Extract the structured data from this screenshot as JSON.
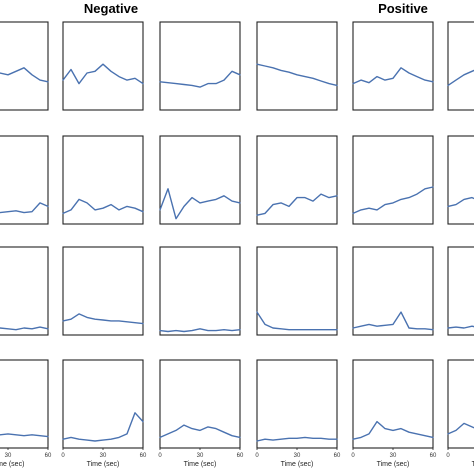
{
  "chart_data": {
    "type": "line",
    "title": "",
    "group_titles": [
      "Negative",
      "Positive"
    ],
    "xlabel": "Time (sec)",
    "x_ticks": [
      "0",
      "30",
      "60"
    ],
    "x_ticks_cut": [
      "30",
      "60"
    ],
    "xlim": [
      0,
      60
    ],
    "ylim": [
      0,
      1
    ],
    "rows": 4,
    "cols": 6,
    "series_color": "#4a72b0",
    "panels": [
      {
        "row": 0,
        "col": 0,
        "y": [
          0.28,
          0.3,
          0.38,
          0.44,
          0.42,
          0.4,
          0.44,
          0.48,
          0.4,
          0.34,
          0.32
        ]
      },
      {
        "row": 0,
        "col": 1,
        "y": [
          0.34,
          0.46,
          0.3,
          0.42,
          0.44,
          0.52,
          0.44,
          0.38,
          0.34,
          0.36,
          0.3
        ]
      },
      {
        "row": 0,
        "col": 2,
        "y": [
          0.32,
          0.31,
          0.3,
          0.29,
          0.28,
          0.26,
          0.3,
          0.3,
          0.34,
          0.44,
          0.4
        ]
      },
      {
        "row": 0,
        "col": 3,
        "y": [
          0.52,
          0.5,
          0.48,
          0.45,
          0.43,
          0.4,
          0.38,
          0.36,
          0.33,
          0.3,
          0.28
        ]
      },
      {
        "row": 0,
        "col": 4,
        "y": [
          0.3,
          0.34,
          0.31,
          0.38,
          0.34,
          0.36,
          0.48,
          0.42,
          0.38,
          0.34,
          0.32
        ]
      },
      {
        "row": 0,
        "col": 5,
        "y": [
          0.28,
          0.34,
          0.4,
          0.44,
          0.48,
          0.44,
          0.4,
          0.38,
          0.36,
          0.34,
          0.32
        ]
      },
      {
        "row": 1,
        "col": 0,
        "y": [
          0.15,
          0.14,
          0.15,
          0.14,
          0.13,
          0.14,
          0.15,
          0.13,
          0.14,
          0.24,
          0.2
        ]
      },
      {
        "row": 1,
        "col": 1,
        "y": [
          0.12,
          0.16,
          0.28,
          0.24,
          0.16,
          0.18,
          0.22,
          0.16,
          0.2,
          0.18,
          0.14
        ]
      },
      {
        "row": 1,
        "col": 2,
        "y": [
          0.16,
          0.4,
          0.06,
          0.2,
          0.3,
          0.24,
          0.26,
          0.28,
          0.32,
          0.26,
          0.24
        ]
      },
      {
        "row": 1,
        "col": 3,
        "y": [
          0.1,
          0.12,
          0.22,
          0.24,
          0.2,
          0.3,
          0.3,
          0.26,
          0.34,
          0.3,
          0.32
        ]
      },
      {
        "row": 1,
        "col": 4,
        "y": [
          0.12,
          0.16,
          0.18,
          0.16,
          0.22,
          0.24,
          0.28,
          0.3,
          0.34,
          0.4,
          0.42
        ]
      },
      {
        "row": 1,
        "col": 5,
        "y": [
          0.2,
          0.22,
          0.28,
          0.3,
          0.26,
          0.28,
          0.32,
          0.3,
          0.28,
          0.3,
          0.29
        ]
      },
      {
        "row": 2,
        "col": 0,
        "y": [
          0.08,
          0.07,
          0.08,
          0.06,
          0.08,
          0.07,
          0.06,
          0.08,
          0.07,
          0.09,
          0.07
        ]
      },
      {
        "row": 2,
        "col": 1,
        "y": [
          0.16,
          0.18,
          0.24,
          0.2,
          0.18,
          0.17,
          0.16,
          0.16,
          0.15,
          0.14,
          0.13
        ]
      },
      {
        "row": 2,
        "col": 2,
        "y": [
          0.05,
          0.04,
          0.05,
          0.04,
          0.05,
          0.07,
          0.05,
          0.05,
          0.06,
          0.05,
          0.06
        ]
      },
      {
        "row": 2,
        "col": 3,
        "y": [
          0.26,
          0.12,
          0.08,
          0.07,
          0.06,
          0.06,
          0.06,
          0.06,
          0.06,
          0.06,
          0.06
        ]
      },
      {
        "row": 2,
        "col": 4,
        "y": [
          0.08,
          0.1,
          0.12,
          0.1,
          0.11,
          0.12,
          0.26,
          0.08,
          0.07,
          0.07,
          0.06
        ]
      },
      {
        "row": 2,
        "col": 5,
        "y": [
          0.08,
          0.09,
          0.08,
          0.1,
          0.08,
          0.12,
          0.09,
          0.1,
          0.08,
          0.09,
          0.08
        ]
      },
      {
        "row": 3,
        "col": 0,
        "y": [
          0.12,
          0.14,
          0.15,
          0.14,
          0.15,
          0.16,
          0.15,
          0.14,
          0.15,
          0.14,
          0.13
        ]
      },
      {
        "row": 3,
        "col": 1,
        "y": [
          0.1,
          0.12,
          0.1,
          0.09,
          0.08,
          0.09,
          0.1,
          0.12,
          0.16,
          0.4,
          0.3
        ]
      },
      {
        "row": 3,
        "col": 2,
        "y": [
          0.12,
          0.16,
          0.2,
          0.26,
          0.22,
          0.2,
          0.24,
          0.22,
          0.18,
          0.14,
          0.12
        ]
      },
      {
        "row": 3,
        "col": 3,
        "y": [
          0.08,
          0.1,
          0.09,
          0.1,
          0.11,
          0.11,
          0.12,
          0.11,
          0.11,
          0.1,
          0.1
        ]
      },
      {
        "row": 3,
        "col": 4,
        "y": [
          0.1,
          0.12,
          0.16,
          0.3,
          0.22,
          0.2,
          0.22,
          0.18,
          0.16,
          0.14,
          0.12
        ]
      },
      {
        "row": 3,
        "col": 5,
        "y": [
          0.16,
          0.2,
          0.28,
          0.24,
          0.2,
          0.26,
          0.3,
          0.26,
          0.22,
          0.18,
          0.16
        ]
      }
    ]
  }
}
